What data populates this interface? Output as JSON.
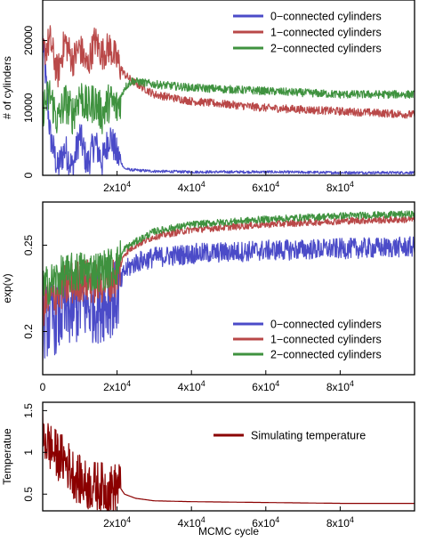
{
  "chart_data": [
    {
      "type": "line",
      "ylabel": "# of cylinders",
      "xlim": [
        0,
        100000
      ],
      "ylim": [
        0,
        26000
      ],
      "yticks": [
        0,
        10000,
        20000
      ],
      "ytick_labels": [
        "0",
        "10000",
        "20000"
      ],
      "xticks": [
        20000,
        40000,
        60000,
        80000
      ],
      "xtick_labels": [
        {
          "base": "2x10",
          "exp": "4"
        },
        {
          "base": "4x10",
          "exp": "4"
        },
        {
          "base": "6x10",
          "exp": "4"
        },
        {
          "base": "8x10",
          "exp": "4"
        }
      ],
      "legend_position": "top-right",
      "series": [
        {
          "name": "0−connected cylinders",
          "color": "#4b4bc8",
          "x": [
            0,
            2000,
            4000,
            6000,
            8000,
            10000,
            12000,
            14000,
            16000,
            18000,
            20000,
            22000,
            24000,
            30000,
            40000,
            60000,
            80000,
            100000
          ],
          "y": [
            20000,
            6000,
            1000,
            4000,
            1000,
            6000,
            1500,
            5000,
            2000,
            6000,
            3000,
            1000,
            800,
            600,
            500,
            500,
            400,
            400
          ],
          "noise_early": 2500,
          "noise_late": 200
        },
        {
          "name": "1−connected cylinders",
          "color": "#b94848",
          "x": [
            0,
            2000,
            4000,
            6000,
            8000,
            10000,
            12000,
            14000,
            16000,
            18000,
            20000,
            22000,
            24000,
            30000,
            40000,
            60000,
            80000,
            100000
          ],
          "y": [
            18000,
            20000,
            15000,
            20000,
            17000,
            19000,
            16000,
            20000,
            18000,
            19000,
            17000,
            15000,
            14000,
            12000,
            11000,
            10000,
            9500,
            9000
          ],
          "noise_early": 2500,
          "noise_late": 600
        },
        {
          "name": "2−connected cylinders",
          "color": "#3f923f",
          "x": [
            0,
            2000,
            4000,
            6000,
            8000,
            10000,
            12000,
            14000,
            16000,
            18000,
            20000,
            22000,
            24000,
            30000,
            40000,
            60000,
            80000,
            100000
          ],
          "y": [
            10000,
            12000,
            8000,
            11000,
            9000,
            12000,
            10000,
            11000,
            9000,
            11000,
            10000,
            13000,
            14000,
            13500,
            13000,
            12500,
            12000,
            12000
          ],
          "noise_early": 3000,
          "noise_late": 600
        }
      ]
    },
    {
      "type": "line",
      "ylabel": "exp(v)",
      "xlim": [
        0,
        100000
      ],
      "ylim": [
        0.175,
        0.275
      ],
      "yticks": [
        0.2,
        0.25
      ],
      "ytick_labels": [
        "0.2",
        "0.25"
      ],
      "xticks": [
        0,
        20000,
        40000,
        60000,
        80000
      ],
      "xtick_labels": [
        {
          "base": "0",
          "exp": ""
        },
        {
          "base": "2x10",
          "exp": "4"
        },
        {
          "base": "4x10",
          "exp": "4"
        },
        {
          "base": "6x10",
          "exp": "4"
        },
        {
          "base": "8x10",
          "exp": "4"
        }
      ],
      "legend_position": "bottom-right",
      "series": [
        {
          "name": "0−connected cylinders",
          "color": "#4b4bc8",
          "x": [
            0,
            5000,
            10000,
            15000,
            20000,
            22000,
            25000,
            30000,
            40000,
            60000,
            80000,
            100000
          ],
          "y": [
            0.205,
            0.21,
            0.215,
            0.215,
            0.22,
            0.235,
            0.24,
            0.243,
            0.245,
            0.247,
            0.248,
            0.249
          ],
          "noise_early": 0.022,
          "noise_late": 0.006
        },
        {
          "name": "1−connected cylinders",
          "color": "#b94848",
          "x": [
            0,
            5000,
            10000,
            15000,
            20000,
            22000,
            25000,
            30000,
            40000,
            60000,
            80000,
            100000
          ],
          "y": [
            0.215,
            0.225,
            0.23,
            0.228,
            0.232,
            0.245,
            0.25,
            0.255,
            0.259,
            0.262,
            0.264,
            0.265
          ],
          "noise_early": 0.013,
          "noise_late": 0.002
        },
        {
          "name": "2−connected cylinders",
          "color": "#3f923f",
          "x": [
            0,
            5000,
            10000,
            15000,
            20000,
            22000,
            25000,
            30000,
            40000,
            60000,
            80000,
            100000
          ],
          "y": [
            0.225,
            0.232,
            0.235,
            0.235,
            0.238,
            0.248,
            0.252,
            0.258,
            0.262,
            0.265,
            0.267,
            0.268
          ],
          "noise_early": 0.012,
          "noise_late": 0.002
        }
      ]
    },
    {
      "type": "line",
      "xlabel": "MCMC cycle",
      "ylabel": "Temperatue",
      "xlim": [
        0,
        100000
      ],
      "ylim": [
        0.3,
        1.6
      ],
      "yticks": [
        0.5,
        1.0,
        1.5
      ],
      "ytick_labels": [
        "0.5",
        "1",
        "1.5"
      ],
      "xticks": [
        20000,
        40000,
        60000,
        80000
      ],
      "xtick_labels": [
        {
          "base": "2x10",
          "exp": "4"
        },
        {
          "base": "4x10",
          "exp": "4"
        },
        {
          "base": "6x10",
          "exp": "4"
        },
        {
          "base": "8x10",
          "exp": "4"
        }
      ],
      "legend_position": "top-right",
      "series": [
        {
          "name": "Simulating temperature",
          "color": "#8b0000",
          "x": [
            0,
            3000,
            6000,
            9000,
            12000,
            15000,
            18000,
            20500,
            22000,
            25000,
            30000,
            40000,
            60000,
            80000,
            100000
          ],
          "y": [
            1.2,
            1.0,
            0.9,
            0.7,
            0.6,
            0.6,
            0.55,
            0.6,
            0.5,
            0.45,
            0.42,
            0.41,
            0.4,
            0.39,
            0.39
          ],
          "noise_early": 0.3,
          "noise_late": 0.0
        }
      ]
    }
  ]
}
